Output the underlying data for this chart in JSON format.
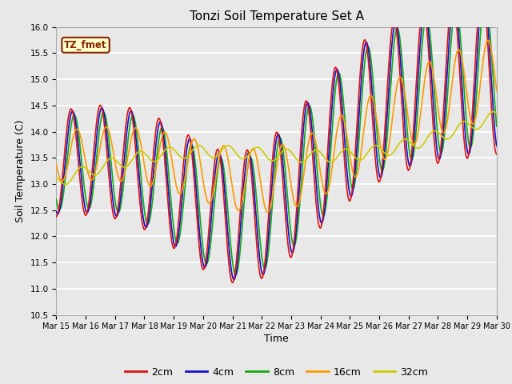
{
  "title": "Tonzi Soil Temperature Set A",
  "xlabel": "Time",
  "ylabel": "Soil Temperature (C)",
  "ylim": [
    10.5,
    16.0
  ],
  "yticks": [
    10.5,
    11.0,
    11.5,
    12.0,
    12.5,
    13.0,
    13.5,
    14.0,
    14.5,
    15.0,
    15.5,
    16.0
  ],
  "xtick_labels": [
    "Mar 15",
    "Mar 16",
    "Mar 17",
    "Mar 18",
    "Mar 19",
    "Mar 20",
    "Mar 21",
    "Mar 22",
    "Mar 23",
    "Mar 24",
    "Mar 25",
    "Mar 26",
    "Mar 27",
    "Mar 28",
    "Mar 29",
    "Mar 30"
  ],
  "legend_labels": [
    "2cm",
    "4cm",
    "8cm",
    "16cm",
    "32cm"
  ],
  "colors": [
    "#dd1111",
    "#1111cc",
    "#11aa11",
    "#ff9900",
    "#cccc00"
  ],
  "annotation_text": "TZ_fmet",
  "annotation_color": "#882200",
  "annotation_bg": "#ffffcc",
  "plot_bg": "#e8e8e8",
  "fig_bg": "#e8e8e8",
  "grid_color": "#ffffff",
  "linewidth": 1.2
}
